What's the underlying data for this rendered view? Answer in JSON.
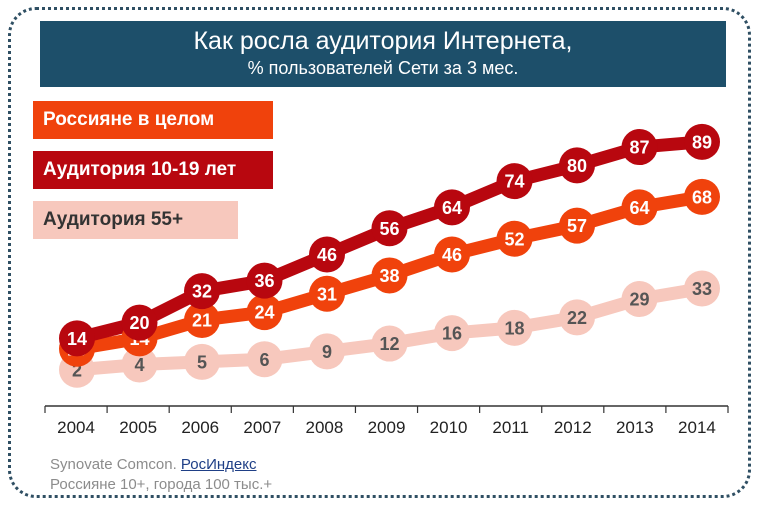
{
  "title": "Как росла аудитория Интернета,",
  "subtitle": "% пользователей Сети за 3 мес.",
  "source": {
    "prefix": "Synovate Comcon. ",
    "link": "РосИндекс",
    "note": "Россияне 10+, города 100 тыс.+"
  },
  "chart_data": {
    "type": "line",
    "categories": [
      "2004",
      "2005",
      "2006",
      "2007",
      "2008",
      "2009",
      "2010",
      "2011",
      "2012",
      "2013",
      "2014"
    ],
    "ylim": [
      0,
      100
    ],
    "grid": false,
    "legend_position": "top-left",
    "series": [
      {
        "name": "Россияне в целом",
        "color": "#f0420c",
        "label_color": "#ffffff",
        "values": [
          10,
          14,
          21,
          24,
          31,
          38,
          46,
          52,
          57,
          64,
          68
        ]
      },
      {
        "name": "Аудитория 10-19 лет",
        "color": "#b8070f",
        "label_color": "#ffffff",
        "values": [
          14,
          20,
          32,
          36,
          46,
          56,
          64,
          74,
          80,
          87,
          89
        ]
      },
      {
        "name": "Аудитория 55+",
        "color": "#f7c8bd",
        "label_color": "#555555",
        "values": [
          2,
          4,
          5,
          6,
          9,
          12,
          16,
          18,
          22,
          29,
          33
        ]
      }
    ]
  }
}
